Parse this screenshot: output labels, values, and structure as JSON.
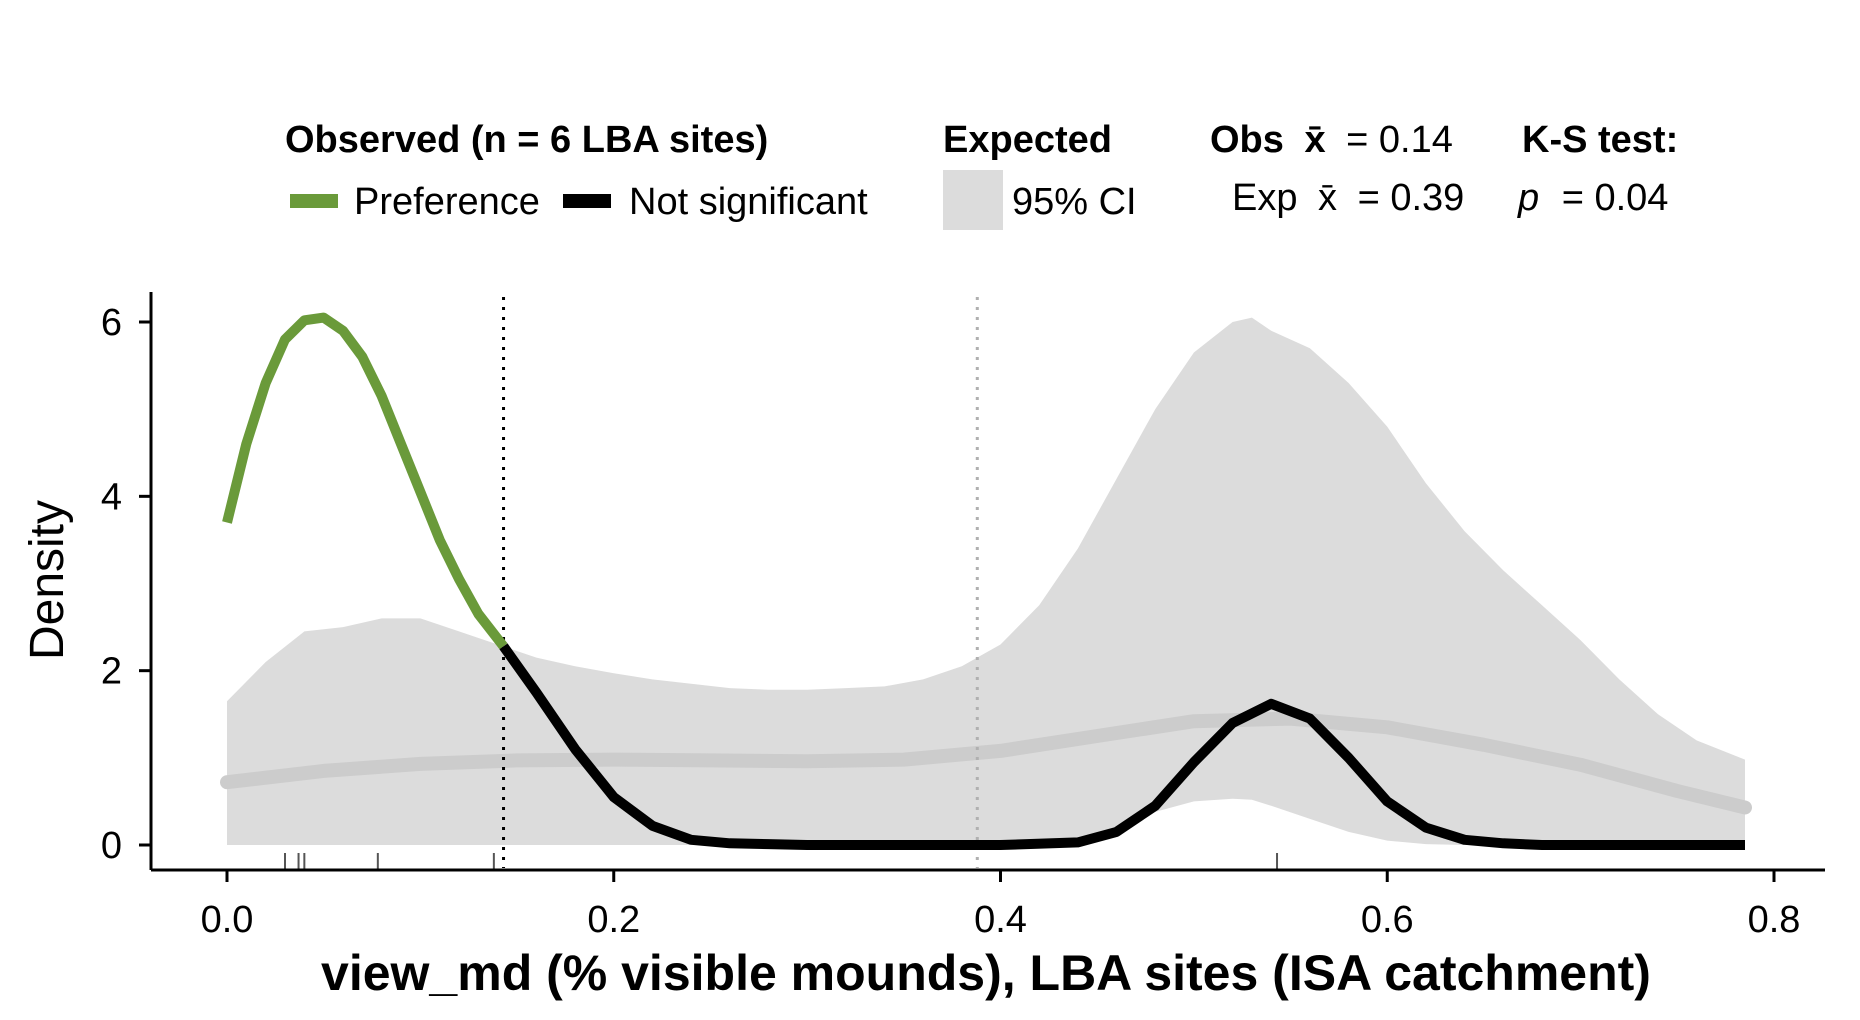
{
  "chart_data": {
    "type": "area",
    "xlabel": "view_md (% visible mounds), LBA sites (ISA catchment)",
    "ylabel": "Density",
    "xlim": [
      -0.05,
      0.825
    ],
    "ylim": [
      -0.28,
      6.4
    ],
    "x_ticks": [
      "0.0",
      "0.2",
      "0.4",
      "0.6",
      "0.8"
    ],
    "y_ticks": [
      "0",
      "2",
      "4",
      "6"
    ],
    "grid": false,
    "legend_position": "top",
    "obs_mean": 0.143,
    "exp_mean": 0.388,
    "expected_ci": {
      "x": [
        0.0,
        0.02,
        0.04,
        0.06,
        0.08,
        0.1,
        0.12,
        0.14,
        0.16,
        0.18,
        0.2,
        0.22,
        0.24,
        0.26,
        0.28,
        0.3,
        0.32,
        0.34,
        0.36,
        0.38,
        0.4,
        0.42,
        0.44,
        0.46,
        0.48,
        0.5,
        0.52,
        0.53,
        0.54,
        0.56,
        0.58,
        0.6,
        0.62,
        0.64,
        0.66,
        0.68,
        0.7,
        0.72,
        0.74,
        0.76,
        0.785
      ],
      "upper": [
        1.65,
        2.1,
        2.45,
        2.5,
        2.6,
        2.6,
        2.45,
        2.3,
        2.15,
        2.05,
        1.97,
        1.9,
        1.85,
        1.8,
        1.78,
        1.78,
        1.8,
        1.82,
        1.9,
        2.05,
        2.3,
        2.75,
        3.4,
        4.2,
        5.0,
        5.65,
        6.0,
        6.05,
        5.9,
        5.7,
        5.3,
        4.8,
        4.15,
        3.6,
        3.15,
        2.75,
        2.35,
        1.9,
        1.5,
        1.2,
        0.98
      ],
      "lower": [
        0,
        0,
        0,
        0,
        0,
        0,
        0,
        0,
        0,
        0,
        0,
        0,
        0,
        0,
        0,
        0,
        0,
        0,
        0,
        0,
        0,
        0.02,
        0.08,
        0.2,
        0.38,
        0.5,
        0.53,
        0.52,
        0.45,
        0.3,
        0.15,
        0.05,
        0.01,
        0,
        0,
        0,
        0,
        0,
        0,
        0,
        0
      ]
    },
    "expected_mean": {
      "x": [
        0.0,
        0.05,
        0.1,
        0.15,
        0.2,
        0.25,
        0.3,
        0.35,
        0.4,
        0.45,
        0.5,
        0.55,
        0.6,
        0.65,
        0.7,
        0.75,
        0.785
      ],
      "values": [
        0.72,
        0.85,
        0.93,
        0.97,
        0.98,
        0.97,
        0.96,
        0.98,
        1.08,
        1.25,
        1.42,
        1.45,
        1.35,
        1.15,
        0.92,
        0.62,
        0.43
      ]
    },
    "series": [
      {
        "name": "Preference",
        "color": "#6a9a3a",
        "x": [
          0.0,
          0.01,
          0.02,
          0.03,
          0.04,
          0.05,
          0.06,
          0.07,
          0.08,
          0.09,
          0.1,
          0.11,
          0.12,
          0.13,
          0.143
        ],
        "values": [
          3.7,
          4.6,
          5.3,
          5.8,
          6.02,
          6.05,
          5.9,
          5.6,
          5.15,
          4.6,
          4.05,
          3.5,
          3.05,
          2.65,
          2.28
        ]
      },
      {
        "name": "Not significant",
        "color": "#000000",
        "x": [
          0.143,
          0.16,
          0.18,
          0.2,
          0.22,
          0.24,
          0.26,
          0.28,
          0.3,
          0.35,
          0.4,
          0.44,
          0.46,
          0.48,
          0.5,
          0.52,
          0.54,
          0.56,
          0.58,
          0.6,
          0.62,
          0.64,
          0.66,
          0.68,
          0.7,
          0.785
        ],
        "values": [
          2.28,
          1.75,
          1.1,
          0.55,
          0.22,
          0.06,
          0.02,
          0.01,
          0.0,
          0.0,
          0.0,
          0.03,
          0.15,
          0.45,
          0.95,
          1.4,
          1.62,
          1.45,
          1.0,
          0.5,
          0.2,
          0.06,
          0.02,
          0.0,
          0.0,
          0.0
        ]
      }
    ],
    "rug_x": [
      0.03,
      0.037,
      0.04,
      0.078,
      0.138,
      0.543
    ],
    "ci_color": "#dcdcdc",
    "mean_line_color": "#cccccc"
  },
  "legend": {
    "observed_title": "Observed (n = 6 LBA sites)",
    "preference_label": "Preference",
    "notsig_label": "Not significant",
    "expected_title": "Expected",
    "ci_label": "95% CI",
    "obs_mean_label": "Obs",
    "obs_mean_sym": "x̄",
    "obs_mean_value": "= 0.14",
    "exp_mean_label": "Exp",
    "exp_mean_sym": "x̄",
    "exp_mean_value": "= 0.39",
    "ks_title": "K-S test:",
    "ks_p_symbol": "p",
    "ks_p_value": "= 0.04"
  }
}
